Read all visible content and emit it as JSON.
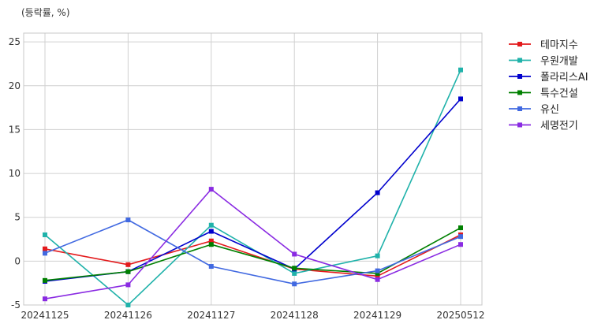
{
  "chart_data": {
    "type": "line",
    "title": "",
    "unit_label": "(등락률, %)",
    "xlabel": "",
    "ylabel": "",
    "categories": [
      "20241125",
      "20241126",
      "20241127",
      "20241128",
      "20241129",
      "20250512"
    ],
    "ylim": [
      -5,
      26
    ],
    "yticks": [
      -5,
      0,
      5,
      10,
      15,
      20,
      25
    ],
    "ytick_labels": [
      "-5",
      "0",
      "5",
      "10",
      "15",
      "20",
      "25"
    ],
    "grid": true,
    "legend_position": "top-right outside",
    "marker": "square",
    "series": [
      {
        "name": "테마지수",
        "color": "#e31a1c",
        "values": [
          1.4,
          -0.4,
          2.3,
          -0.9,
          -1.7,
          3.0
        ]
      },
      {
        "name": "우원개발",
        "color": "#20b2aa",
        "values": [
          3.0,
          -5.0,
          4.1,
          -1.4,
          0.6,
          21.8
        ]
      },
      {
        "name": "폴라리스AI",
        "color": "#0000cd",
        "values": [
          -2.3,
          -1.2,
          3.4,
          -0.9,
          7.8,
          18.5
        ]
      },
      {
        "name": "특수건설",
        "color": "#008000",
        "values": [
          -2.2,
          -1.2,
          1.9,
          -0.8,
          -1.4,
          3.8
        ]
      },
      {
        "name": "유신",
        "color": "#4169e1",
        "values": [
          0.9,
          4.7,
          -0.6,
          -2.6,
          -1.1,
          2.8
        ]
      },
      {
        "name": "세명전기",
        "color": "#8a2be2",
        "values": [
          -4.3,
          -2.7,
          8.2,
          0.8,
          -2.1,
          1.9
        ]
      }
    ]
  }
}
